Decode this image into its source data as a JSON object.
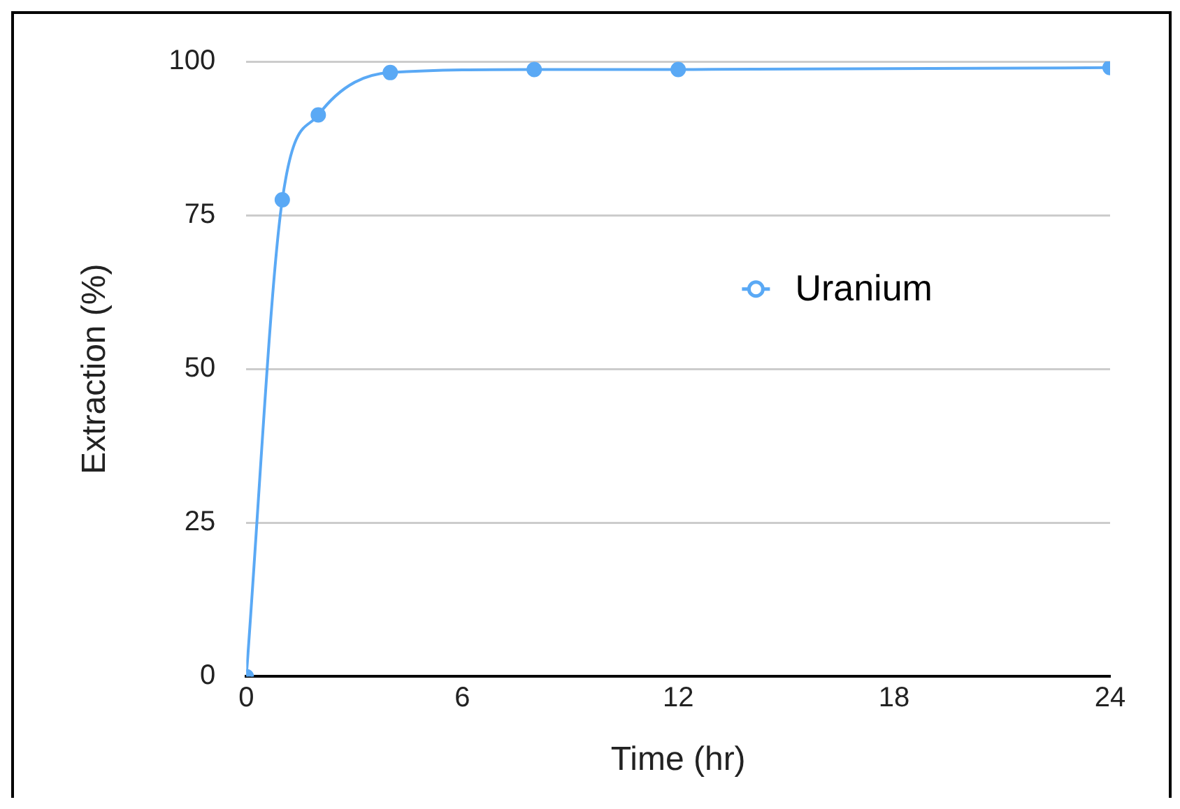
{
  "chart_data": {
    "type": "line",
    "xlabel": "Time (hr)",
    "ylabel": "Extraction (%)",
    "x": [
      0,
      1,
      2,
      4,
      8,
      12,
      24
    ],
    "series": [
      {
        "name": "Uranium",
        "color": "#5aa9f5",
        "values": [
          0,
          77.5,
          91.3,
          98.2,
          98.7,
          98.7,
          99
        ]
      }
    ],
    "xlim": [
      0,
      24
    ],
    "xticks": [
      0,
      6,
      12,
      18,
      24
    ],
    "ylim": [
      0,
      100
    ],
    "yticks": [
      0,
      25,
      50,
      75,
      100
    ],
    "grid": "y",
    "legend": "right",
    "marker": "circle",
    "line_style": "solid"
  }
}
